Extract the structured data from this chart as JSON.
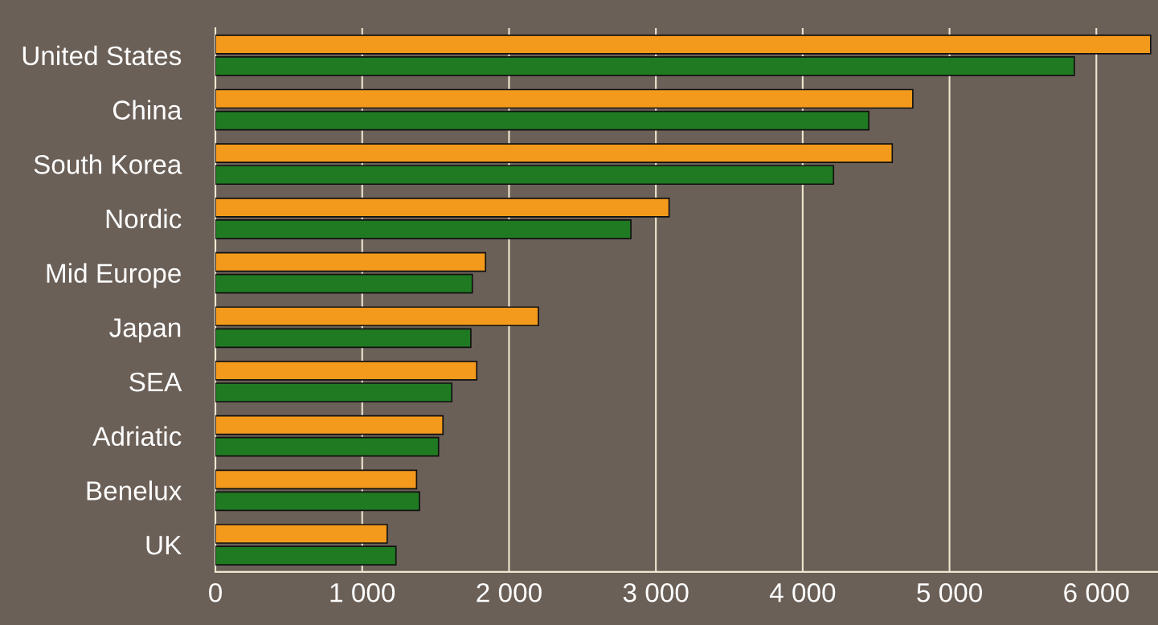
{
  "chart_data": {
    "type": "bar",
    "orientation": "horizontal",
    "categories": [
      "United States",
      "China",
      "South Korea",
      "Nordic",
      "Mid Europe",
      "Japan",
      "SEA",
      "Adriatic",
      "Benelux",
      "UK"
    ],
    "series": [
      {
        "color": "#f39a1c",
        "values": [
          6370,
          4750,
          4610,
          3090,
          1840,
          2200,
          1780,
          1550,
          1370,
          1170
        ]
      },
      {
        "color": "#1f7a22",
        "values": [
          5850,
          4450,
          4210,
          2830,
          1750,
          1740,
          1610,
          1520,
          1390,
          1230
        ]
      }
    ],
    "xlim": [
      0,
      6420
    ],
    "xticks": [
      {
        "value": 0,
        "label": "0"
      },
      {
        "value": 1000,
        "label": "1 000"
      },
      {
        "value": 2000,
        "label": "2 000"
      },
      {
        "value": 3000,
        "label": "3 000"
      },
      {
        "value": 4000,
        "label": "4 000"
      },
      {
        "value": 5000,
        "label": "5 000"
      },
      {
        "value": 6000,
        "label": "6 000"
      }
    ],
    "grid": "x",
    "legend": false
  }
}
